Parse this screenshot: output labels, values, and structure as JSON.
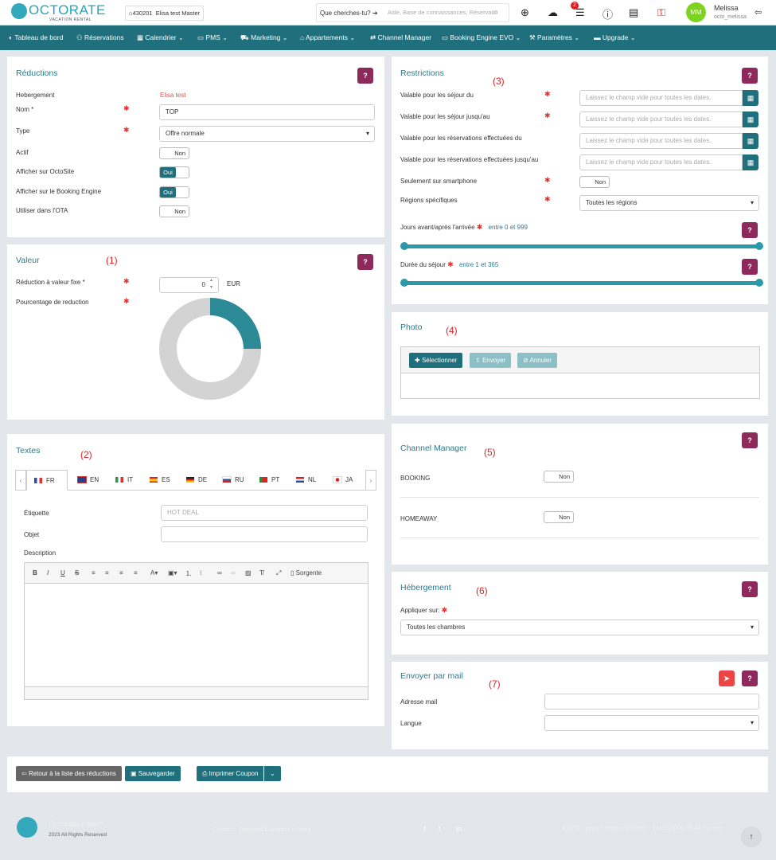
{
  "topbar": {
    "logo": "OCTORATE",
    "logo_sub": "VACATION RENTAL",
    "property_id": "430201",
    "property_name": "Elisa test Master",
    "search_cta": "Que cherches-tu?",
    "search_placeholder": "Aide, Base de connaissances, Réservatio",
    "notif_count": "2",
    "avatar_initials": "MM",
    "user_name": "Melissa",
    "user_login": "octo_melissa"
  },
  "nav": [
    "Tableau de bord",
    "Réservations",
    "Calendrier",
    "PMS",
    "Marketing",
    "Appartements",
    "Channel Manager",
    "Booking Engine EVO",
    "Paramètres",
    "Upgrade"
  ],
  "reductions": {
    "title": "Réductions",
    "help": "?",
    "hebergement_label": "Hebergement",
    "hebergement_value": "Elisa test",
    "nom_label": "Nom *",
    "nom_value": "TOP",
    "type_label": "Type",
    "type_value": "Offre normale",
    "actif_label": "Actif",
    "actif_value": "Non",
    "octosite_label": "Afficher sur OctoSite",
    "octosite_value": "Oui",
    "be_label": "Afficher sur le Booking Engine",
    "be_value": "Oui",
    "ota_label": "Utiliser dans l'OTA",
    "ota_value": "Non"
  },
  "valeur": {
    "title": "Valeur",
    "marker": "(1)",
    "help": "?",
    "fixe_label": "Réduction à valeur fixe *",
    "fixe_value": "0",
    "currency": "EUR",
    "pct_label": "Pourcentage de reduction",
    "donut_fraction": 0.25,
    "colors": {
      "fill": "#2b8a96",
      "rest": "#d3d3d3"
    }
  },
  "textes": {
    "title": "Textes",
    "marker": "(2)",
    "tabs": [
      "FR",
      "EN",
      "IT",
      "ES",
      "DE",
      "RU",
      "PT",
      "NL",
      "JA"
    ],
    "etiquette_label": "Étiquette",
    "etiquette_placeholder": "HOT DEAL",
    "objet_label": "Objet",
    "description_label": "Description",
    "source_label": "Sorgente"
  },
  "restrictions": {
    "title": "Restrictions",
    "marker": "(3)",
    "help": "?",
    "date_placeholder": "Laissez le champ vide pour toutes les dates.",
    "sejour_du": "Valable pour les séjour du",
    "sejour_jusqu": "Valable pour les séjour jusqu'au",
    "resa_du": "Valable pour les réservations effectuées du",
    "resa_jusqu": "Valable pour les réservations effectuées jusqu'au",
    "smartphone_label": "Seulement sur smartphone",
    "smartphone_value": "Non",
    "regions_label": "Régions spécifiques",
    "regions_value": "Toutes les régions",
    "jours_label": "Jours avant/après l'arrivée",
    "jours_range": "entre 0 et 999",
    "duree_label": "Durée du séjour",
    "duree_range": "entre 1 et 365"
  },
  "photo": {
    "title": "Photo",
    "marker": "(4)",
    "select_btn": "Sélectionner",
    "send_btn": "Envoyer",
    "cancel_btn": "Annuler"
  },
  "channel": {
    "title": "Channel Manager",
    "marker": "(5)",
    "help": "?",
    "booking_label": "BOOKING",
    "booking_value": "Non",
    "homeaway_label": "HOMEAWAY",
    "homeaway_value": "Non"
  },
  "heberg": {
    "title": "Hébergement",
    "marker": "(6)",
    "help": "?",
    "apply_label": "Appliquer sur:",
    "apply_value": "Toutes les chambres"
  },
  "mail": {
    "title": "Envoyer par mail",
    "marker": "(7)",
    "help": "?",
    "address_label": "Adresse mail",
    "lang_label": "Langue"
  },
  "actions": {
    "back": "Retour à la liste des réductions",
    "save": "Sauvegarder",
    "print": "Imprimer Coupon"
  },
  "footer": {
    "brand": "Octorate.com™",
    "copyright": "2023 All Rights Reserved",
    "links": "Contact · Term and Condition · Press",
    "build": "430201 · payara-instance@host01 · 1442823006 · Build Number"
  }
}
